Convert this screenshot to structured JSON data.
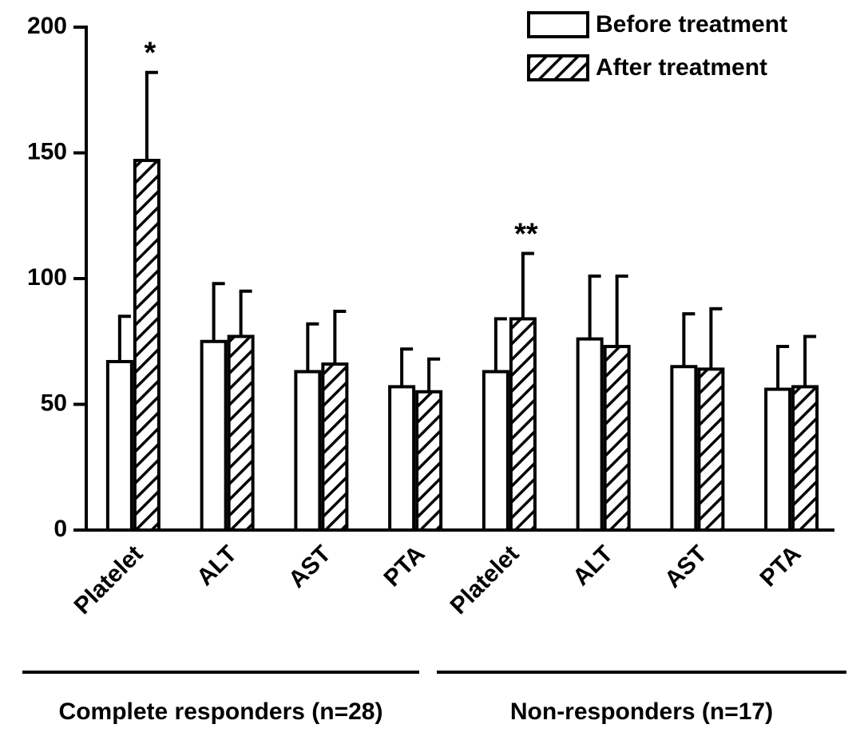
{
  "chart_data": {
    "type": "bar",
    "categories": [
      "Platelet",
      "ALT",
      "AST",
      "PTA",
      "Platelet",
      "ALT",
      "AST",
      "PTA"
    ],
    "series": [
      {
        "name": "Before treatment",
        "color": "#ffffff",
        "pattern": "none",
        "values": [
          67,
          75,
          63,
          57,
          63,
          76,
          65,
          56
        ],
        "errors": [
          18,
          23,
          19,
          15,
          21,
          25,
          21,
          17
        ]
      },
      {
        "name": "After treatment",
        "color": "#ffffff",
        "pattern": "hatch",
        "values": [
          147,
          77,
          66,
          55,
          84,
          73,
          64,
          57
        ],
        "errors": [
          35,
          18,
          21,
          13,
          26,
          28,
          24,
          20
        ]
      }
    ],
    "ylim": [
      0,
      200
    ],
    "yticks": [
      0,
      50,
      100,
      150,
      200
    ],
    "legend": "upper right",
    "annotations": [
      {
        "text": "*",
        "category": 0,
        "series": 1
      },
      {
        "text": "**",
        "category": 4,
        "series": 1
      }
    ],
    "groups": [
      {
        "label": "Complete responders (n=28)",
        "first": 0,
        "last": 3
      },
      {
        "label": "Non-responders (n=17)",
        "first": 4,
        "last": 7
      }
    ]
  }
}
